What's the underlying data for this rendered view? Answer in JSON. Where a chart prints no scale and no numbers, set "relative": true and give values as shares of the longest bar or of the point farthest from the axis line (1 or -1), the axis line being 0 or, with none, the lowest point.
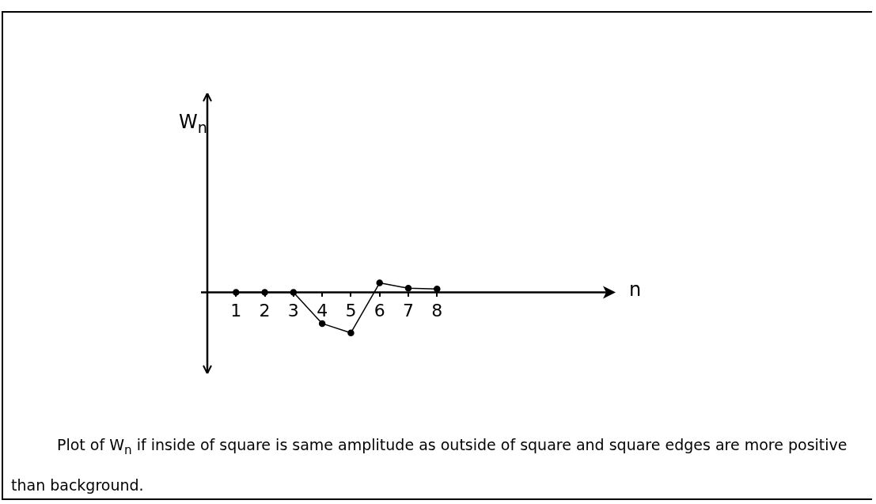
{
  "chart_data": {
    "type": "line",
    "relative": true,
    "xlabel": "n",
    "x": [
      1,
      2,
      3,
      4,
      5,
      6,
      7,
      8
    ],
    "xlim": [
      0,
      14
    ],
    "xticks": [
      1,
      2,
      3,
      4,
      5,
      6,
      7,
      8
    ],
    "marker": "circle",
    "series": [
      {
        "color": "#000000",
        "values": [
          0,
          0,
          0,
          -0.77,
          -1,
          0.23,
          0.1,
          0.08
        ]
      }
    ],
    "annotations": [
      "W$_{n}$",
      "Plot of W$_{n}$ if inside of square is same amplitude as outside of square and square edges are more positive than background."
    ]
  }
}
